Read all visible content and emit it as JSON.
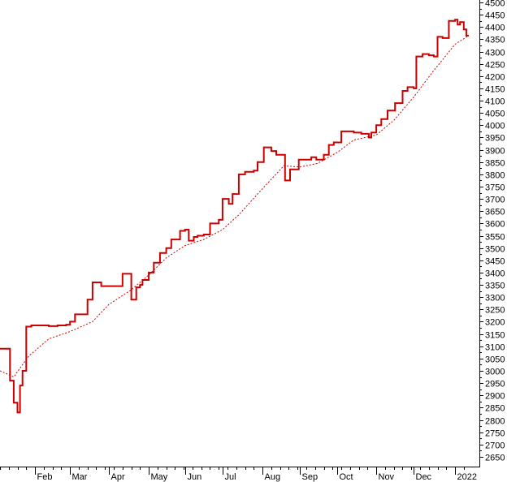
{
  "chart_data": {
    "type": "line",
    "title": "",
    "xlabel": "",
    "ylabel": "",
    "ylim": [
      2610,
      4510
    ],
    "y_ticks": [
      2650,
      2700,
      2750,
      2800,
      2850,
      2900,
      2950,
      3000,
      3050,
      3100,
      3150,
      3200,
      3250,
      3300,
      3350,
      3400,
      3450,
      3500,
      3550,
      3600,
      3650,
      3700,
      3750,
      3800,
      3850,
      3900,
      3950,
      4000,
      4050,
      4100,
      4150,
      4200,
      4250,
      4300,
      4350,
      4400,
      4450,
      4500
    ],
    "y_axis_position": "right",
    "x_start": "2021-01-04",
    "x_end": "2022-01-14",
    "x_ticks": [
      {
        "label": "Feb",
        "date": "2021-02-01"
      },
      {
        "label": "Mar",
        "date": "2021-03-01"
      },
      {
        "label": "Apr",
        "date": "2021-04-01"
      },
      {
        "label": "May",
        "date": "2021-05-03"
      },
      {
        "label": "Jun",
        "date": "2021-06-01"
      },
      {
        "label": "Jul",
        "date": "2021-07-01"
      },
      {
        "label": "Aug",
        "date": "2021-08-02"
      },
      {
        "label": "Sep",
        "date": "2021-09-01"
      },
      {
        "label": "Oct",
        "date": "2021-10-01"
      },
      {
        "label": "Nov",
        "date": "2021-11-01"
      },
      {
        "label": "Dec",
        "date": "2021-12-01"
      },
      {
        "label": "2022",
        "date": "2022-01-03"
      }
    ],
    "grid": false,
    "legend": "none",
    "colors": {
      "price": "#cc0000",
      "average": "#cc0000",
      "axis": "#000000"
    },
    "series": [
      {
        "style": "solid",
        "x": [
          "2021-01-04",
          "2021-01-11",
          "2021-01-12",
          "2021-01-15",
          "2021-01-18",
          "2021-01-20",
          "2021-01-22",
          "2021-01-25",
          "2021-01-27",
          "2021-01-29",
          "2021-02-05",
          "2021-02-12",
          "2021-02-19",
          "2021-02-26",
          "2021-03-01",
          "2021-03-05",
          "2021-03-10",
          "2021-03-15",
          "2021-03-19",
          "2021-03-26",
          "2021-04-01",
          "2021-04-07",
          "2021-04-12",
          "2021-04-19",
          "2021-04-23",
          "2021-04-26",
          "2021-04-28",
          "2021-05-03",
          "2021-05-07",
          "2021-05-12",
          "2021-05-17",
          "2021-05-21",
          "2021-05-28",
          "2021-06-01",
          "2021-06-04",
          "2021-06-08",
          "2021-06-11",
          "2021-06-16",
          "2021-06-21",
          "2021-06-28",
          "2021-07-01",
          "2021-07-06",
          "2021-07-09",
          "2021-07-14",
          "2021-07-19",
          "2021-07-26",
          "2021-07-29",
          "2021-08-03",
          "2021-08-09",
          "2021-08-13",
          "2021-08-19",
          "2021-08-20",
          "2021-08-24",
          "2021-08-31",
          "2021-09-07",
          "2021-09-10",
          "2021-09-14",
          "2021-09-20",
          "2021-09-24",
          "2021-09-28",
          "2021-10-04",
          "2021-10-08",
          "2021-10-14",
          "2021-10-20",
          "2021-10-26",
          "2021-10-28",
          "2021-11-01",
          "2021-11-05",
          "2021-11-10",
          "2021-11-16",
          "2021-11-22",
          "2021-11-26",
          "2021-12-01",
          "2021-12-03",
          "2021-12-08",
          "2021-12-13",
          "2021-12-17",
          "2021-12-20",
          "2021-12-24",
          "2021-12-29",
          "2022-01-03",
          "2022-01-05",
          "2022-01-07",
          "2022-01-10",
          "2022-01-12",
          "2022-01-14"
        ],
        "values": [
          3090,
          3090,
          2960,
          2870,
          2830,
          2940,
          3000,
          3180,
          3180,
          3185,
          3185,
          3182,
          3185,
          3188,
          3200,
          3230,
          3230,
          3290,
          3360,
          3345,
          3345,
          3345,
          3395,
          3290,
          3340,
          3350,
          3370,
          3400,
          3440,
          3480,
          3500,
          3535,
          3570,
          3575,
          3530,
          3545,
          3550,
          3555,
          3600,
          3615,
          3700,
          3680,
          3720,
          3800,
          3810,
          3815,
          3850,
          3910,
          3895,
          3880,
          3880,
          3775,
          3820,
          3860,
          3860,
          3870,
          3860,
          3880,
          3920,
          3930,
          3975,
          3975,
          3970,
          3965,
          3950,
          3970,
          4000,
          4025,
          4060,
          4090,
          4140,
          4155,
          4150,
          4280,
          4290,
          4285,
          4280,
          4360,
          4355,
          4425,
          4430,
          4410,
          4420,
          4390,
          4365,
          4365
        ]
      },
      {
        "style": "dotted",
        "x": [
          "2021-01-04",
          "2021-01-15",
          "2021-01-27",
          "2021-02-12",
          "2021-03-01",
          "2021-03-19",
          "2021-04-01",
          "2021-04-19",
          "2021-05-03",
          "2021-05-17",
          "2021-06-01",
          "2021-06-16",
          "2021-07-01",
          "2021-07-14",
          "2021-07-29",
          "2021-08-09",
          "2021-08-19",
          "2021-09-01",
          "2021-09-15",
          "2021-10-01",
          "2021-10-14",
          "2021-11-01",
          "2021-11-15",
          "2021-12-01",
          "2021-12-15",
          "2022-01-03",
          "2022-01-14"
        ],
        "values": [
          3000,
          2975,
          3060,
          3130,
          3160,
          3200,
          3270,
          3330,
          3390,
          3460,
          3510,
          3535,
          3575,
          3635,
          3720,
          3780,
          3835,
          3830,
          3845,
          3890,
          3940,
          3960,
          4020,
          4115,
          4210,
          4330,
          4365
        ]
      }
    ]
  }
}
